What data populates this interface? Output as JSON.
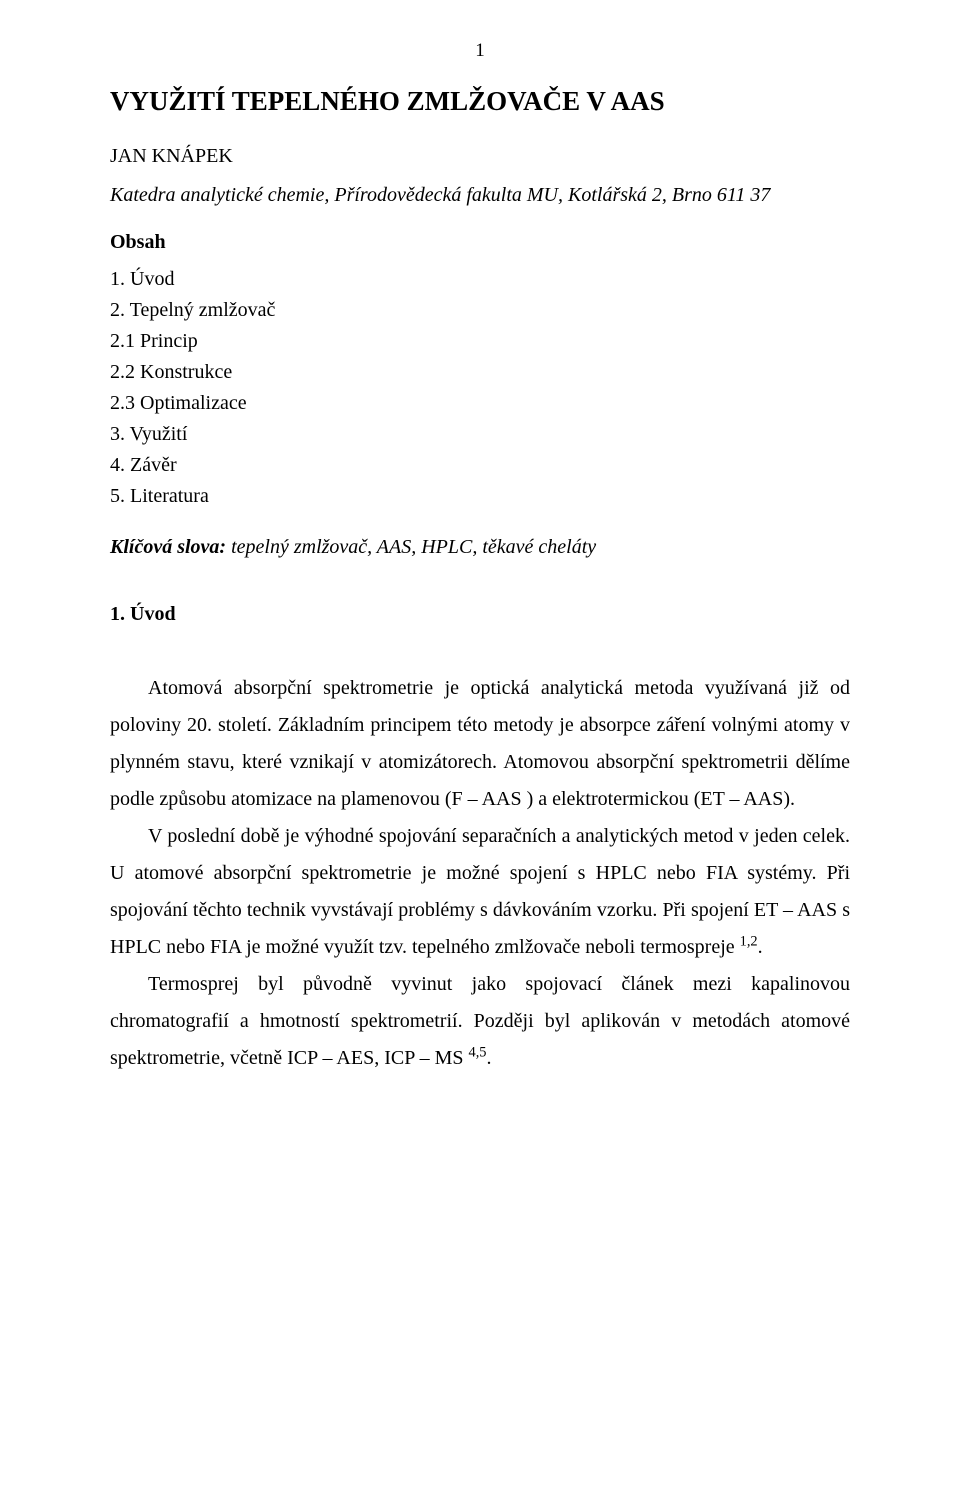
{
  "page": {
    "number": "1",
    "background_color": "#ffffff",
    "text_color": "#000000",
    "font_family": "Times New Roman"
  },
  "title": "VYUŽITÍ TEPELNÉHO ZMLŽOVAČE V AAS",
  "author": "JAN KNÁPEK",
  "affiliation": "Katedra analytické chemie, Přírodovědecká fakulta MU, Kotlářská 2, Brno 611 37",
  "toc": {
    "heading": "Obsah",
    "items": [
      "1. Úvod",
      "2. Tepelný zmlžovač",
      "2.1 Princip",
      "2.2 Konstrukce",
      "2.3 Optimalizace",
      "3. Využití",
      "4. Závěr",
      "5. Literatura"
    ]
  },
  "keywords": {
    "label": "Klíčová slova:",
    "values": " tepelný zmlžovač, AAS, HPLC, těkavé cheláty"
  },
  "section1": {
    "heading": "1. Úvod",
    "p1a": "Atomová absorpční spektrometrie je optická analytická metoda využívaná již od poloviny 20. století. Základním principem této metody je absorpce záření volnými atomy v plynném stavu, které vznikají v atomizátorech. Atomovou absorpční spektrometrii dělíme podle způsobu atomizace na plamenovou (F – AAS ) a elektrotermickou (ET – AAS).",
    "p2a": "V poslední době je výhodné spojování separačních a analytických metod v jeden celek. U atomové absorpční spektrometrie je možné spojení s HPLC nebo FIA systémy. Při spojování těchto technik vyvstávají problémy s dávkováním vzorku. Při spojení ET – AAS  s HPLC nebo FIA je možné využít tzv. tepelného zmlžovače neboli termospreje ",
    "p2sup": "1,2",
    "p2b": ".",
    "p3a": "Termosprej byl původně vyvinut jako spojovací článek mezi kapalinovou chromatografií a hmotností spektrometrií. Později  byl aplikován  v metodách atomové spektrometrie, včetně ICP – AES, ICP – MS ",
    "p3sup": "4,5",
    "p3b": "."
  }
}
